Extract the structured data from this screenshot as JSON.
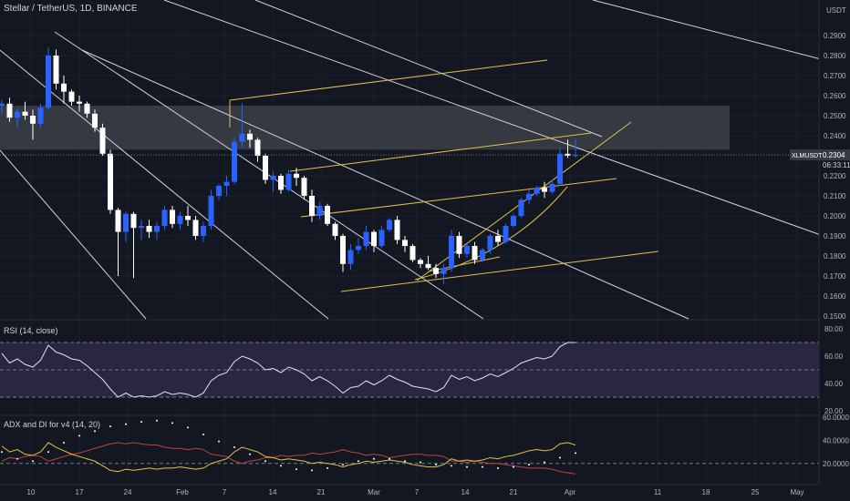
{
  "header": {
    "title": "Stellar / TetherUS, 1D, BINANCE"
  },
  "price_axis": {
    "unit": "USDT",
    "ticks": [
      "0.2900",
      "0.2800",
      "0.2700",
      "0.2600",
      "0.2500",
      "0.2400",
      "0.2200",
      "0.2100",
      "0.2000",
      "0.1900",
      "0.1800",
      "0.1700",
      "0.1600",
      "0.1500"
    ],
    "last_price_symbol": "XLMUSDT",
    "last_price": "0.2304",
    "countdown": "06:33:11"
  },
  "rsi_panel": {
    "title": "RSI (14, close)",
    "ticks": [
      "80.00",
      "60.00",
      "40.00",
      "20.00"
    ]
  },
  "adx_panel": {
    "title": "ADX and DI for v4 (14, 20)",
    "ticks": [
      "60.0000",
      "40.0000",
      "20.0000"
    ]
  },
  "time_axis": {
    "ticks": [
      "10",
      "17",
      "24",
      "Feb",
      "7",
      "14",
      "21",
      "Mar",
      "7",
      "14",
      "21",
      "Apr",
      "11",
      "18",
      "25",
      "May"
    ]
  },
  "colors": {
    "background": "#131722",
    "bullish": "#2962ff",
    "bearish": "#ffffff",
    "trendline": "#d1d4dc",
    "channel": "#e0c24a",
    "zone": "#3a3d46",
    "rsi_band": "#2a2540",
    "adx_red": "#c0433c"
  },
  "chart_data": {
    "type": "candlestick",
    "x_start": "2023-01-07",
    "candles": [
      [
        0.255,
        0.258,
        0.251,
        0.256
      ],
      [
        0.256,
        0.259,
        0.247,
        0.249
      ],
      [
        0.249,
        0.254,
        0.244,
        0.252
      ],
      [
        0.252,
        0.257,
        0.248,
        0.25
      ],
      [
        0.25,
        0.253,
        0.238,
        0.246
      ],
      [
        0.246,
        0.256,
        0.244,
        0.254
      ],
      [
        0.254,
        0.284,
        0.253,
        0.28
      ],
      [
        0.28,
        0.283,
        0.263,
        0.266
      ],
      [
        0.266,
        0.27,
        0.256,
        0.262
      ],
      [
        0.262,
        0.263,
        0.255,
        0.257
      ],
      [
        0.257,
        0.26,
        0.252,
        0.256
      ],
      [
        0.256,
        0.257,
        0.249,
        0.251
      ],
      [
        0.251,
        0.253,
        0.242,
        0.244
      ],
      [
        0.244,
        0.246,
        0.23,
        0.231
      ],
      [
        0.231,
        0.233,
        0.201,
        0.203
      ],
      [
        0.203,
        0.204,
        0.17,
        0.192
      ],
      [
        0.192,
        0.202,
        0.187,
        0.201
      ],
      [
        0.201,
        0.202,
        0.169,
        0.194
      ],
      [
        0.194,
        0.198,
        0.188,
        0.195
      ],
      [
        0.195,
        0.198,
        0.189,
        0.192
      ],
      [
        0.192,
        0.197,
        0.188,
        0.195
      ],
      [
        0.195,
        0.205,
        0.193,
        0.203
      ],
      [
        0.203,
        0.205,
        0.194,
        0.196
      ],
      [
        0.196,
        0.202,
        0.193,
        0.2
      ],
      [
        0.2,
        0.205,
        0.195,
        0.198
      ],
      [
        0.198,
        0.2,
        0.188,
        0.19
      ],
      [
        0.19,
        0.197,
        0.187,
        0.195
      ],
      [
        0.195,
        0.213,
        0.193,
        0.21
      ],
      [
        0.21,
        0.216,
        0.208,
        0.215
      ],
      [
        0.215,
        0.22,
        0.21,
        0.217
      ],
      [
        0.217,
        0.239,
        0.216,
        0.237
      ],
      [
        0.237,
        0.256,
        0.234,
        0.241
      ],
      [
        0.241,
        0.243,
        0.234,
        0.238
      ],
      [
        0.238,
        0.239,
        0.227,
        0.23
      ],
      [
        0.23,
        0.231,
        0.216,
        0.218
      ],
      [
        0.218,
        0.222,
        0.212,
        0.22
      ],
      [
        0.22,
        0.221,
        0.211,
        0.213
      ],
      [
        0.213,
        0.223,
        0.212,
        0.221
      ],
      [
        0.221,
        0.224,
        0.215,
        0.219
      ],
      [
        0.219,
        0.22,
        0.208,
        0.21
      ],
      [
        0.21,
        0.213,
        0.197,
        0.2
      ],
      [
        0.2,
        0.207,
        0.198,
        0.205
      ],
      [
        0.205,
        0.206,
        0.195,
        0.196
      ],
      [
        0.196,
        0.197,
        0.188,
        0.19
      ],
      [
        0.19,
        0.191,
        0.172,
        0.176
      ],
      [
        0.176,
        0.186,
        0.173,
        0.183
      ],
      [
        0.183,
        0.189,
        0.181,
        0.185
      ],
      [
        0.185,
        0.195,
        0.183,
        0.192
      ],
      [
        0.192,
        0.193,
        0.182,
        0.185
      ],
      [
        0.185,
        0.195,
        0.184,
        0.193
      ],
      [
        0.193,
        0.199,
        0.192,
        0.198
      ],
      [
        0.198,
        0.2,
        0.186,
        0.188
      ],
      [
        0.188,
        0.19,
        0.182,
        0.185
      ],
      [
        0.185,
        0.186,
        0.177,
        0.178
      ],
      [
        0.178,
        0.179,
        0.174,
        0.176
      ],
      [
        0.176,
        0.18,
        0.173,
        0.174
      ],
      [
        0.174,
        0.176,
        0.169,
        0.171
      ],
      [
        0.171,
        0.176,
        0.166,
        0.174
      ],
      [
        0.174,
        0.193,
        0.172,
        0.19
      ],
      [
        0.19,
        0.192,
        0.179,
        0.181
      ],
      [
        0.181,
        0.186,
        0.179,
        0.185
      ],
      [
        0.185,
        0.187,
        0.176,
        0.178
      ],
      [
        0.178,
        0.184,
        0.177,
        0.183
      ],
      [
        0.183,
        0.191,
        0.181,
        0.19
      ],
      [
        0.19,
        0.193,
        0.185,
        0.187
      ],
      [
        0.187,
        0.196,
        0.186,
        0.195
      ],
      [
        0.195,
        0.201,
        0.194,
        0.2
      ],
      [
        0.2,
        0.209,
        0.199,
        0.208
      ],
      [
        0.208,
        0.213,
        0.206,
        0.211
      ],
      [
        0.211,
        0.215,
        0.21,
        0.214
      ],
      [
        0.214,
        0.217,
        0.209,
        0.212
      ],
      [
        0.212,
        0.218,
        0.211,
        0.216
      ],
      [
        0.216,
        0.234,
        0.215,
        0.231
      ],
      [
        0.231,
        0.238,
        0.229,
        0.23
      ],
      [
        0.23,
        0.238,
        0.229,
        0.2304
      ]
    ],
    "resistance_zone": [
      0.233,
      0.255
    ],
    "rsi": [
      62,
      55,
      58,
      54,
      52,
      57,
      68,
      63,
      61,
      58,
      57,
      53,
      48,
      43,
      36,
      30,
      33,
      30,
      31,
      30,
      31,
      34,
      32,
      33,
      32,
      30,
      33,
      42,
      46,
      48,
      56,
      60,
      58,
      55,
      50,
      51,
      48,
      52,
      50,
      47,
      42,
      45,
      42,
      38,
      33,
      37,
      38,
      42,
      39,
      42,
      46,
      43,
      41,
      38,
      37,
      36,
      34,
      37,
      46,
      43,
      45,
      42,
      44,
      47,
      45,
      48,
      51,
      55,
      57,
      59,
      58,
      60,
      67,
      70,
      70
    ],
    "adx": [
      [
        30,
        28,
        24,
        22,
        22,
        24,
        30,
        34,
        38,
        42,
        44,
        46,
        48,
        50,
        52,
        53,
        54,
        55,
        56,
        57,
        57,
        56,
        55,
        53,
        51,
        48,
        45,
        42,
        39,
        36,
        34,
        31,
        28,
        25,
        22,
        20,
        18,
        16,
        15,
        14,
        14,
        15,
        16,
        18,
        19,
        20,
        22,
        23,
        24,
        24,
        24,
        23,
        22,
        22,
        21,
        20,
        19,
        18,
        18,
        18,
        17,
        17,
        17,
        17,
        16,
        16,
        17,
        18,
        19,
        20,
        21,
        23,
        25,
        27,
        29
      ]
    ],
    "di_plus": [
      35,
      30,
      32,
      28,
      27,
      30,
      38,
      34,
      31,
      28,
      26,
      24,
      22,
      18,
      14,
      13,
      15,
      14,
      15,
      16,
      15,
      16,
      16,
      17,
      16,
      15,
      16,
      20,
      22,
      24,
      30,
      34,
      32,
      30,
      26,
      25,
      23,
      24,
      23,
      22,
      20,
      21,
      20,
      19,
      17,
      19,
      20,
      22,
      21,
      22,
      23,
      22,
      21,
      19,
      18,
      17,
      17,
      19,
      24,
      22,
      23,
      22,
      23,
      25,
      24,
      26,
      27,
      29,
      31,
      32,
      31,
      32,
      37,
      38,
      36
    ],
    "di_minus": [
      22,
      25,
      24,
      26,
      27,
      26,
      22,
      24,
      26,
      28,
      29,
      31,
      33,
      35,
      37,
      38,
      37,
      38,
      37,
      36,
      36,
      34,
      33,
      33,
      32,
      33,
      32,
      28,
      27,
      26,
      22,
      20,
      22,
      23,
      25,
      25,
      27,
      26,
      27,
      27,
      29,
      28,
      29,
      30,
      32,
      30,
      29,
      27,
      28,
      27,
      25,
      26,
      27,
      28,
      28,
      27,
      27,
      26,
      22,
      22,
      21,
      22,
      21,
      20,
      20,
      19,
      18,
      17,
      16,
      16,
      16,
      15,
      13,
      12,
      11
    ]
  }
}
